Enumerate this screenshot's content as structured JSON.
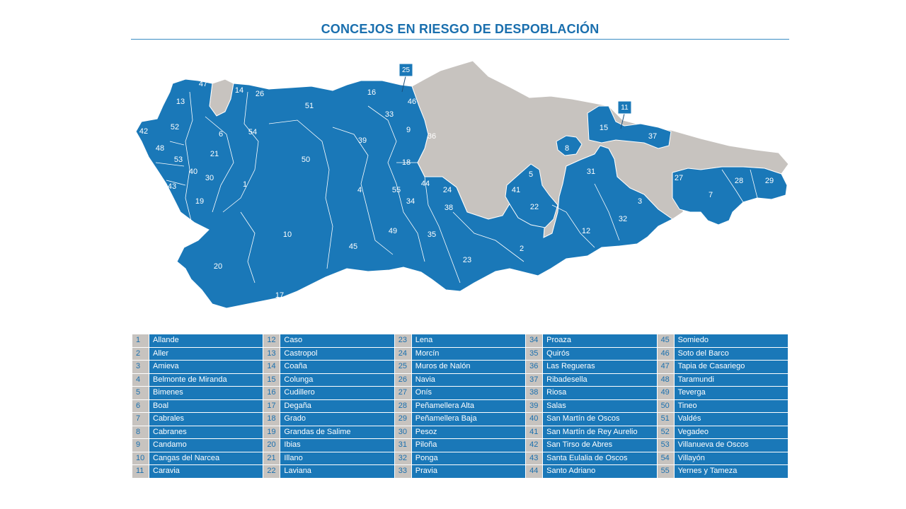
{
  "title": "CONCEJOS EN RIESGO DE DESPOBLACIÓN",
  "colors": {
    "risk": "#1a78b8",
    "other": "#c7c3bf",
    "title": "#1a6fae"
  },
  "map_labels": [
    {
      "n": "47"
    },
    {
      "n": "14"
    },
    {
      "n": "26"
    },
    {
      "n": "13"
    },
    {
      "n": "51"
    },
    {
      "n": "16"
    },
    {
      "n": "46"
    },
    {
      "n": "33"
    },
    {
      "n": "52"
    },
    {
      "n": "42"
    },
    {
      "n": "6"
    },
    {
      "n": "54"
    },
    {
      "n": "48"
    },
    {
      "n": "21"
    },
    {
      "n": "53"
    },
    {
      "n": "39"
    },
    {
      "n": "9"
    },
    {
      "n": "36"
    },
    {
      "n": "50"
    },
    {
      "n": "40"
    },
    {
      "n": "30"
    },
    {
      "n": "43"
    },
    {
      "n": "1"
    },
    {
      "n": "18"
    },
    {
      "n": "4"
    },
    {
      "n": "55"
    },
    {
      "n": "44"
    },
    {
      "n": "24"
    },
    {
      "n": "34"
    },
    {
      "n": "38"
    },
    {
      "n": "19"
    },
    {
      "n": "10"
    },
    {
      "n": "49"
    },
    {
      "n": "35"
    },
    {
      "n": "45"
    },
    {
      "n": "23"
    },
    {
      "n": "20"
    },
    {
      "n": "17"
    },
    {
      "n": "15"
    },
    {
      "n": "37"
    },
    {
      "n": "8"
    },
    {
      "n": "5"
    },
    {
      "n": "31"
    },
    {
      "n": "41"
    },
    {
      "n": "22"
    },
    {
      "n": "27"
    },
    {
      "n": "7"
    },
    {
      "n": "28"
    },
    {
      "n": "29"
    },
    {
      "n": "3"
    },
    {
      "n": "32"
    },
    {
      "n": "12"
    },
    {
      "n": "2"
    }
  ],
  "callouts": [
    {
      "n": "25"
    },
    {
      "n": "11"
    }
  ],
  "legend": [
    [
      {
        "n": "1",
        "name": "Allande"
      },
      {
        "n": "2",
        "name": "Aller"
      },
      {
        "n": "3",
        "name": "Amieva"
      },
      {
        "n": "4",
        "name": "Belmonte de Miranda"
      },
      {
        "n": "5",
        "name": "Bimenes"
      },
      {
        "n": "6",
        "name": "Boal"
      },
      {
        "n": "7",
        "name": "Cabrales"
      },
      {
        "n": "8",
        "name": "Cabranes"
      },
      {
        "n": "9",
        "name": "Candamo"
      },
      {
        "n": "10",
        "name": "Cangas del Narcea"
      },
      {
        "n": "11",
        "name": "Caravia"
      }
    ],
    [
      {
        "n": "12",
        "name": "Caso"
      },
      {
        "n": "13",
        "name": "Castropol"
      },
      {
        "n": "14",
        "name": "Coaña"
      },
      {
        "n": "15",
        "name": "Colunga"
      },
      {
        "n": "16",
        "name": "Cudillero"
      },
      {
        "n": "17",
        "name": "Degaña"
      },
      {
        "n": "18",
        "name": "Grado"
      },
      {
        "n": "19",
        "name": "Grandas de Salime"
      },
      {
        "n": "20",
        "name": "Ibias"
      },
      {
        "n": "21",
        "name": "Illano"
      },
      {
        "n": "22",
        "name": "Laviana"
      }
    ],
    [
      {
        "n": "23",
        "name": "Lena"
      },
      {
        "n": "24",
        "name": "Morcín"
      },
      {
        "n": "25",
        "name": "Muros de Nalón"
      },
      {
        "n": "26",
        "name": "Navia"
      },
      {
        "n": "27",
        "name": "Onís"
      },
      {
        "n": "28",
        "name": "Peñamellera Alta"
      },
      {
        "n": "29",
        "name": "Peñamellera Baja"
      },
      {
        "n": "30",
        "name": "Pesoz"
      },
      {
        "n": "31",
        "name": "Piloña"
      },
      {
        "n": "32",
        "name": "Ponga"
      },
      {
        "n": "33",
        "name": "Pravia"
      }
    ],
    [
      {
        "n": "34",
        "name": "Proaza"
      },
      {
        "n": "35",
        "name": "Quirós"
      },
      {
        "n": "36",
        "name": "Las Regueras"
      },
      {
        "n": "37",
        "name": "Ribadesella"
      },
      {
        "n": "38",
        "name": "Riosa"
      },
      {
        "n": "39",
        "name": "Salas"
      },
      {
        "n": "40",
        "name": "San Martín de Oscos"
      },
      {
        "n": "41",
        "name": "San Martín de Rey Aurelio"
      },
      {
        "n": "42",
        "name": "San Tirso de Abres"
      },
      {
        "n": "43",
        "name": "Santa Eulalia de Oscos"
      },
      {
        "n": "44",
        "name": "Santo Adriano"
      }
    ],
    [
      {
        "n": "45",
        "name": "Somiedo"
      },
      {
        "n": "46",
        "name": "Soto del Barco"
      },
      {
        "n": "47",
        "name": "Tapia de Casariego"
      },
      {
        "n": "48",
        "name": "Taramundi"
      },
      {
        "n": "49",
        "name": "Teverga"
      },
      {
        "n": "50",
        "name": "Tineo"
      },
      {
        "n": "51",
        "name": "Valdés"
      },
      {
        "n": "52",
        "name": "Vegadeo"
      },
      {
        "n": "53",
        "name": "Villanueva de Oscos"
      },
      {
        "n": "54",
        "name": "Villayón"
      },
      {
        "n": "55",
        "name": "Yernes y Tameza"
      }
    ]
  ]
}
